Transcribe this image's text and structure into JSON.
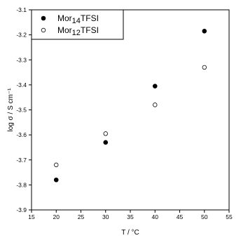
{
  "chart_data": {
    "type": "scatter",
    "title": "",
    "xlabel": "T / °C",
    "ylabel": "log σ / S  cm⁻¹",
    "xlim": [
      15,
      55
    ],
    "ylim": [
      -3.9,
      -3.1
    ],
    "xticks": [
      15,
      20,
      25,
      30,
      35,
      40,
      45,
      50,
      55
    ],
    "yticks": [
      -3.9,
      -3.8,
      -3.7,
      -3.6,
      -3.5,
      -3.4,
      -3.3,
      -3.2,
      -3.1
    ],
    "grid": false,
    "legend": "top-left",
    "series": [
      {
        "name": "Mor14TFSI",
        "name_base": "Mor",
        "name_sub": "14",
        "name_suffix": "TFSI",
        "marker": "filled-circle",
        "color": "#000000",
        "x": [
          20,
          30,
          40,
          50
        ],
        "y": [
          -3.78,
          -3.63,
          -3.405,
          -3.185
        ]
      },
      {
        "name": "Mor12TFSI",
        "name_base": "Mor",
        "name_sub": "12",
        "name_suffix": "TFSI",
        "marker": "open-circle",
        "color": "#000000",
        "x": [
          20,
          30,
          40,
          50
        ],
        "y": [
          -3.72,
          -3.595,
          -3.48,
          -3.33
        ]
      }
    ]
  }
}
